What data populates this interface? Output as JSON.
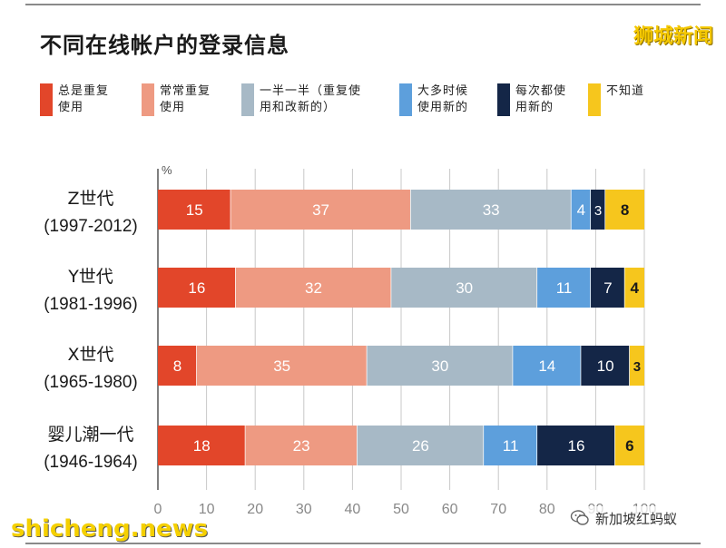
{
  "title": "不同在线帐户的登录信息",
  "watermark_top": "狮城新闻",
  "watermark_bottom_left": "shicheng.news",
  "watermark_bottom_right": "新加坡红蚂蚁",
  "legend": [
    {
      "line1": "总是重复",
      "line2": "使用",
      "color": "#e2462a"
    },
    {
      "line1": "常常重复",
      "line2": "使用",
      "color": "#ee9a82"
    },
    {
      "line1": "一半一半（重复使",
      "line2": "用和改新的）",
      "color": "#a7b9c6"
    },
    {
      "line1": "大多时候",
      "line2": "使用新的",
      "color": "#5d9fdc"
    },
    {
      "line1": "每次都使",
      "line2": "用新的",
      "color": "#142647"
    },
    {
      "line1": "不知道",
      "line2": "",
      "color": "#f6c61d"
    }
  ],
  "chart_data": {
    "type": "bar",
    "orientation": "horizontal",
    "stacked": true,
    "unit_label": "%",
    "xlim": [
      0,
      100
    ],
    "x_ticks": [
      "0",
      "10",
      "20",
      "30",
      "40",
      "50",
      "60",
      "70",
      "80",
      "90",
      "100"
    ],
    "categories": [
      {
        "name": "Z世代",
        "years": "(1997-2012)"
      },
      {
        "name": "Y世代",
        "years": "(1981-1996)"
      },
      {
        "name": "X世代",
        "years": "(1965-1980)"
      },
      {
        "name": "婴儿潮一代",
        "years": "(1946-1964)"
      }
    ],
    "series": [
      {
        "name": "总是重复使用",
        "values": [
          15,
          16,
          8,
          18
        ]
      },
      {
        "name": "常常重复使用",
        "values": [
          37,
          32,
          35,
          23
        ]
      },
      {
        "name": "一半一半（重复使用和改新的）",
        "values": [
          33,
          30,
          30,
          26
        ]
      },
      {
        "name": "大多时候使用新的",
        "values": [
          4,
          11,
          14,
          11
        ]
      },
      {
        "name": "每次都使用新的",
        "values": [
          3,
          7,
          10,
          16
        ]
      },
      {
        "name": "不知道",
        "values": [
          8,
          4,
          3,
          6
        ]
      }
    ],
    "label_colors": [
      "#ffffff",
      "#ffffff",
      "#ffffff",
      "#ffffff",
      "#ffffff",
      "#1a1a1a"
    ],
    "grid": true,
    "legend_position": "top"
  }
}
